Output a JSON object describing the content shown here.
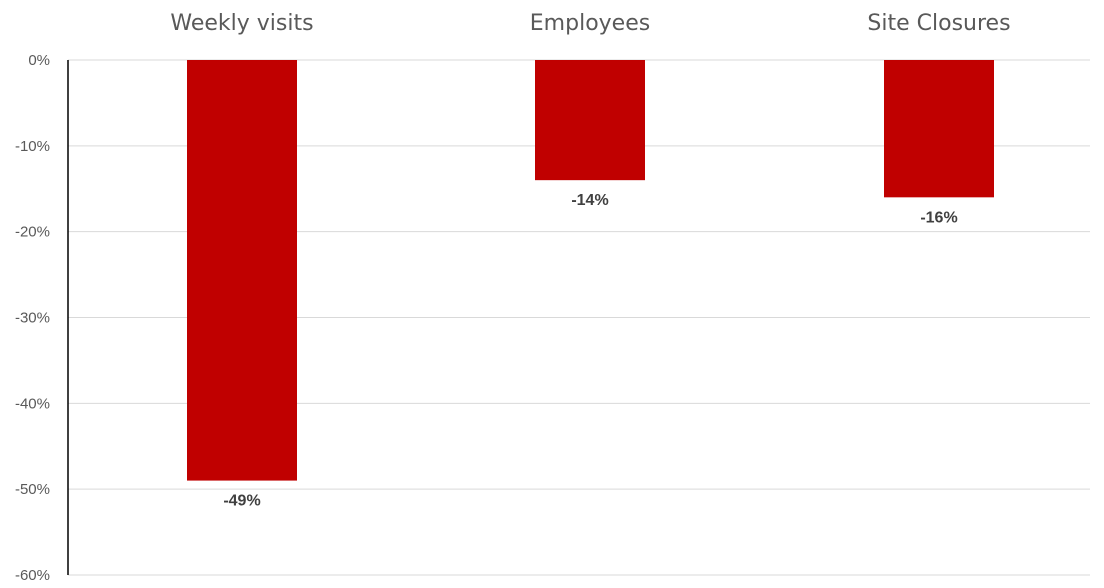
{
  "chart_data": {
    "type": "bar",
    "categories": [
      "Weekly visits",
      "Employees",
      "Site Closures"
    ],
    "values": [
      -49,
      -14,
      -16
    ],
    "data_labels": [
      "-49%",
      "-14%",
      "-16%"
    ],
    "y_ticks": [
      0,
      -10,
      -20,
      -30,
      -40,
      -50,
      -60
    ],
    "y_tick_labels": [
      "0%",
      "-10%",
      "-20%",
      "-30%",
      "-40%",
      "-50%",
      "-60%"
    ],
    "ylim": [
      -60,
      0
    ],
    "title": "",
    "xlabel": "",
    "ylabel": "",
    "grid": true,
    "category_labels_position": "top",
    "colors": {
      "bar": "#c00000",
      "grid": "#d9d9d9",
      "axis": "#000000",
      "text": "#595959",
      "data_label": "#404040"
    }
  }
}
